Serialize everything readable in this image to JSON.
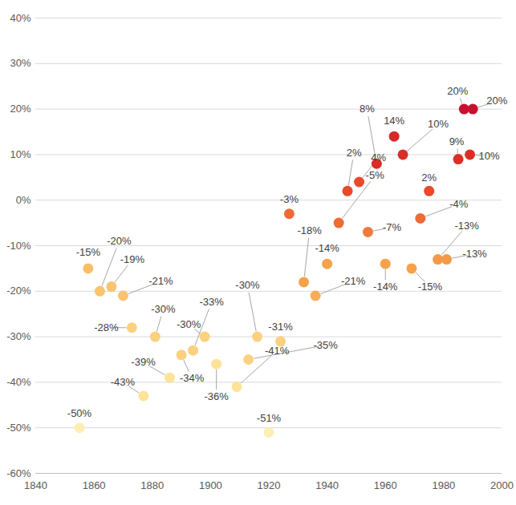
{
  "chart_data": {
    "type": "scatter",
    "x": [
      1855,
      1858,
      1862,
      1866,
      1870,
      1873,
      1877,
      1881,
      1886,
      1890,
      1894,
      1898,
      1902,
      1909,
      1913,
      1916,
      1920,
      1924,
      1927,
      1932,
      1936,
      1940,
      1944,
      1947,
      1951,
      1954,
      1957,
      1960,
      1963,
      1966,
      1969,
      1972,
      1975,
      1978,
      1981,
      1985,
      1987,
      1989,
      1990
    ],
    "values": [
      -50,
      -15,
      -20,
      -19,
      -21,
      -28,
      -43,
      -30,
      -39,
      -34,
      -33,
      -30,
      -36,
      -41,
      -35,
      -30,
      -51,
      -31,
      -3,
      -18,
      -21,
      -14,
      -5,
      2,
      4,
      -7,
      8,
      -14,
      14,
      10,
      -15,
      -4,
      2,
      -13,
      -13,
      9,
      20,
      10,
      20
    ],
    "value_labels": [
      "-50%",
      "-15%",
      "-20%",
      "-19%",
      "-21%",
      "-28%",
      "-43%",
      "-30%",
      "-39%",
      "-34%",
      "-33%",
      "-30%",
      "-36%",
      "-41%",
      "-35%",
      "-30%",
      "-51%",
      "-31%",
      "-3%",
      "-18%",
      "-21%",
      "-14%",
      "-5%",
      "2%",
      "4%",
      "-7%",
      "8%",
      "-14%",
      "14%",
      "10%",
      "-15%",
      "-4%",
      "2%",
      "-13%",
      "-13%",
      "9%",
      "20%",
      "10%",
      "20%"
    ],
    "colors": [
      "#fdeeb3",
      "#f8bf68",
      "#f8c46e",
      "#f8c46e",
      "#f8c46e",
      "#fbd17f",
      "#fde29a",
      "#fbd17f",
      "#fde29a",
      "#fbd17f",
      "#fbd17f",
      "#fbd17f",
      "#fde29a",
      "#fde29a",
      "#fbd17f",
      "#fbd17f",
      "#fdeeb3",
      "#fbd17f",
      "#ee6a36",
      "#f5a24b",
      "#f6ad55",
      "#f5a24b",
      "#ee6a36",
      "#e84a2a",
      "#e84a2a",
      "#ef7a3c",
      "#dc2e26",
      "#f5a24b",
      "#d62828",
      "#dc2e26",
      "#f5a24b",
      "#ee6a36",
      "#e84a2a",
      "#f39a48",
      "#f39a48",
      "#dc2e26",
      "#c8102e",
      "#dc2e26",
      "#c8102e"
    ],
    "xlim": [
      1840,
      2000
    ],
    "xticks": [
      1840,
      1860,
      1880,
      1900,
      1920,
      1940,
      1960,
      1980,
      2000
    ],
    "ylim": [
      -60,
      40
    ],
    "yticks": [
      {
        "value": -60,
        "label": "-60%"
      },
      {
        "value": -50,
        "label": "-50%"
      },
      {
        "value": -40,
        "label": "-40%"
      },
      {
        "value": -30,
        "label": "-30%"
      },
      {
        "value": -20,
        "label": "-20%"
      },
      {
        "value": -10,
        "label": "-10%"
      },
      {
        "value": 0,
        "label": "0%"
      },
      {
        "value": 10,
        "label": "10%"
      },
      {
        "value": 20,
        "label": "20%"
      },
      {
        "value": 30,
        "label": "30%"
      },
      {
        "value": 40,
        "label": "40%"
      }
    ],
    "grid": true,
    "data_labels": true
  }
}
